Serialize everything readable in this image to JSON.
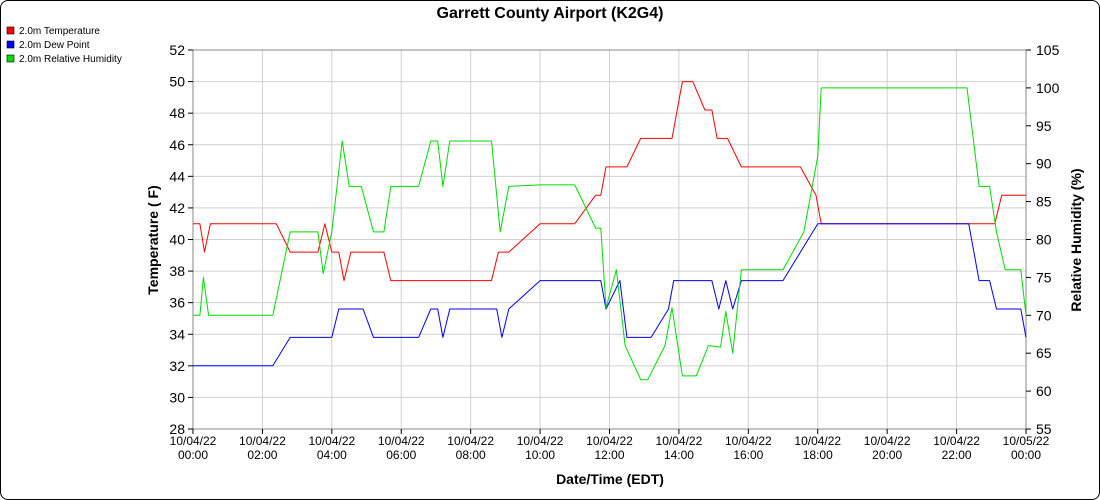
{
  "chart_data": {
    "type": "line",
    "title": "Garrett County Airport (K2G4)",
    "xlabel": "Date/Time (EDT)",
    "ylabel": "Temperature ( F)",
    "y2label": "Relative Humidity (%)",
    "ylim": [
      28,
      52
    ],
    "y2lim": [
      55,
      105
    ],
    "yticks": [
      28,
      30,
      32,
      34,
      36,
      38,
      40,
      42,
      44,
      46,
      48,
      50,
      52
    ],
    "y2ticks": [
      55,
      60,
      65,
      70,
      75,
      80,
      85,
      90,
      95,
      100,
      105
    ],
    "xlim": [
      0,
      24
    ],
    "xticks": [
      {
        "hour": 0,
        "date": "10/04/22",
        "time": "00:00"
      },
      {
        "hour": 2,
        "date": "10/04/22",
        "time": "02:00"
      },
      {
        "hour": 4,
        "date": "10/04/22",
        "time": "04:00"
      },
      {
        "hour": 6,
        "date": "10/04/22",
        "time": "06:00"
      },
      {
        "hour": 8,
        "date": "10/04/22",
        "time": "08:00"
      },
      {
        "hour": 10,
        "date": "10/04/22",
        "time": "10:00"
      },
      {
        "hour": 12,
        "date": "10/04/22",
        "time": "12:00"
      },
      {
        "hour": 14,
        "date": "10/04/22",
        "time": "14:00"
      },
      {
        "hour": 16,
        "date": "10/04/22",
        "time": "16:00"
      },
      {
        "hour": 18,
        "date": "10/04/22",
        "time": "18:00"
      },
      {
        "hour": 20,
        "date": "10/04/22",
        "time": "20:00"
      },
      {
        "hour": 22,
        "date": "10/04/22",
        "time": "22:00"
      },
      {
        "hour": 24,
        "date": "10/05/22",
        "time": "00:00"
      }
    ],
    "grid": true,
    "legend": "top-left",
    "series": [
      {
        "name": "2.0m Temperature",
        "color": "#ff0000",
        "axis": "left",
        "points": [
          [
            0,
            41
          ],
          [
            0.2,
            41
          ],
          [
            0.33,
            39.2
          ],
          [
            0.5,
            41
          ],
          [
            2.4,
            41
          ],
          [
            2.8,
            39.2
          ],
          [
            3.6,
            39.2
          ],
          [
            3.8,
            41
          ],
          [
            4.0,
            39.2
          ],
          [
            4.2,
            39.2
          ],
          [
            4.35,
            37.4
          ],
          [
            4.55,
            39.2
          ],
          [
            5.5,
            39.2
          ],
          [
            5.7,
            37.4
          ],
          [
            8.6,
            37.4
          ],
          [
            8.8,
            39.2
          ],
          [
            9.1,
            39.2
          ],
          [
            10.0,
            41
          ],
          [
            11.0,
            41
          ],
          [
            11.6,
            42.8
          ],
          [
            11.75,
            42.8
          ],
          [
            11.9,
            44.6
          ],
          [
            12.5,
            44.6
          ],
          [
            12.9,
            46.4
          ],
          [
            13.8,
            46.4
          ],
          [
            14.1,
            50
          ],
          [
            14.4,
            50
          ],
          [
            14.75,
            48.2
          ],
          [
            14.95,
            48.2
          ],
          [
            15.1,
            46.4
          ],
          [
            15.4,
            46.4
          ],
          [
            15.8,
            44.6
          ],
          [
            17.5,
            44.6
          ],
          [
            17.95,
            42.8
          ],
          [
            18.1,
            41
          ],
          [
            23.1,
            41
          ],
          [
            23.3,
            42.8
          ],
          [
            24,
            42.8
          ]
        ]
      },
      {
        "name": "2.0m Dew Point",
        "color": "#0000ff",
        "axis": "left",
        "points": [
          [
            0,
            32
          ],
          [
            2.3,
            32
          ],
          [
            2.8,
            33.8
          ],
          [
            4.0,
            33.8
          ],
          [
            4.2,
            35.6
          ],
          [
            4.9,
            35.6
          ],
          [
            5.2,
            33.8
          ],
          [
            6.5,
            33.8
          ],
          [
            6.85,
            35.6
          ],
          [
            7.05,
            35.6
          ],
          [
            7.2,
            33.8
          ],
          [
            7.4,
            35.6
          ],
          [
            8.75,
            35.6
          ],
          [
            8.9,
            33.8
          ],
          [
            9.1,
            35.6
          ],
          [
            10.0,
            37.4
          ],
          [
            11.75,
            37.4
          ],
          [
            11.9,
            35.6
          ],
          [
            12.3,
            37.4
          ],
          [
            12.5,
            33.8
          ],
          [
            13.2,
            33.8
          ],
          [
            13.7,
            35.6
          ],
          [
            13.85,
            37.4
          ],
          [
            14.95,
            37.4
          ],
          [
            15.15,
            35.6
          ],
          [
            15.35,
            37.4
          ],
          [
            15.55,
            35.6
          ],
          [
            15.8,
            37.4
          ],
          [
            17.0,
            37.4
          ],
          [
            18.0,
            41
          ],
          [
            22.35,
            41
          ],
          [
            22.65,
            37.4
          ],
          [
            22.95,
            37.4
          ],
          [
            23.15,
            35.6
          ],
          [
            23.85,
            35.6
          ],
          [
            24,
            33.8
          ]
        ]
      },
      {
        "name": "2.0m Relative Humidity",
        "color": "#00dd00",
        "axis": "right",
        "points": [
          [
            0,
            70
          ],
          [
            0.2,
            70
          ],
          [
            0.3,
            75
          ],
          [
            0.45,
            70
          ],
          [
            2.3,
            70
          ],
          [
            2.8,
            81
          ],
          [
            3.6,
            81
          ],
          [
            3.75,
            75.5
          ],
          [
            4.0,
            81
          ],
          [
            4.3,
            93
          ],
          [
            4.5,
            87
          ],
          [
            4.85,
            87
          ],
          [
            5.2,
            81
          ],
          [
            5.5,
            81
          ],
          [
            5.7,
            87
          ],
          [
            6.5,
            87
          ],
          [
            6.85,
            93
          ],
          [
            7.05,
            93
          ],
          [
            7.2,
            87
          ],
          [
            7.4,
            93
          ],
          [
            8.6,
            93
          ],
          [
            8.85,
            81
          ],
          [
            9.1,
            87
          ],
          [
            10.0,
            87.2
          ],
          [
            11.0,
            87.2
          ],
          [
            11.6,
            81.5
          ],
          [
            11.75,
            81.5
          ],
          [
            11.9,
            71
          ],
          [
            12.2,
            76
          ],
          [
            12.45,
            66
          ],
          [
            12.9,
            61.5
          ],
          [
            13.1,
            61.5
          ],
          [
            13.6,
            66
          ],
          [
            13.8,
            71
          ],
          [
            14.1,
            62
          ],
          [
            14.5,
            62
          ],
          [
            14.85,
            66
          ],
          [
            15.2,
            65.8
          ],
          [
            15.35,
            70.5
          ],
          [
            15.55,
            65
          ],
          [
            15.8,
            76
          ],
          [
            17.0,
            76
          ],
          [
            17.6,
            81
          ],
          [
            18.0,
            91
          ],
          [
            18.1,
            100
          ],
          [
            22.3,
            100
          ],
          [
            22.65,
            87
          ],
          [
            22.95,
            87
          ],
          [
            23.15,
            81
          ],
          [
            23.4,
            76
          ],
          [
            23.85,
            76
          ],
          [
            24,
            70
          ]
        ]
      }
    ]
  }
}
